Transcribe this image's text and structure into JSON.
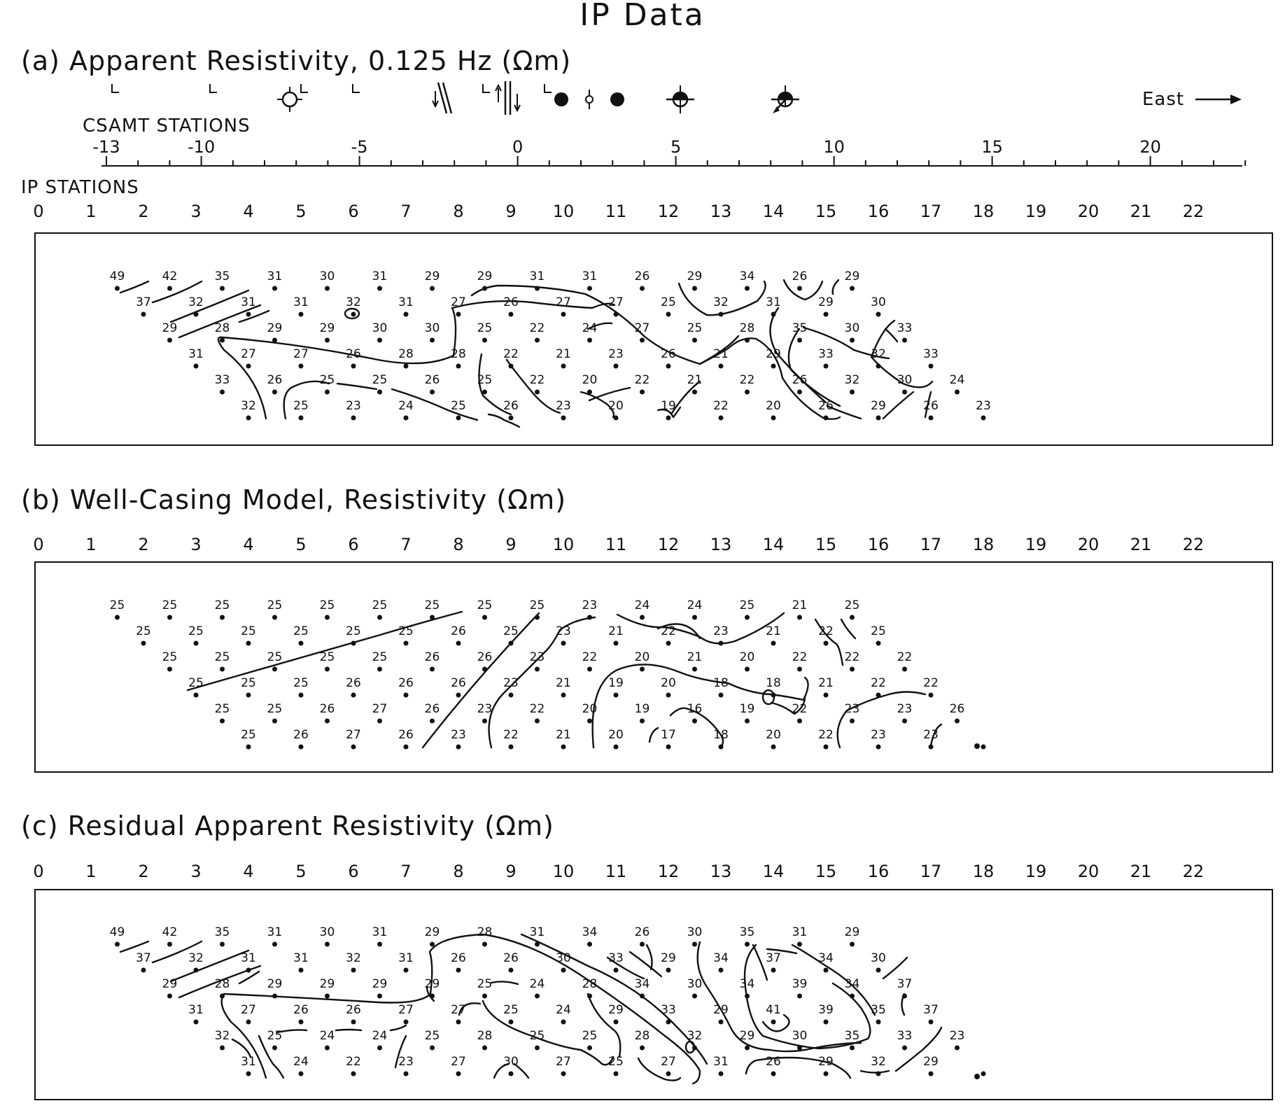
{
  "title": "IP Data",
  "direction_label": "East",
  "csamt_axis": {
    "label": "CSAMT STATIONS",
    "ticks": [
      "-13",
      "-10",
      "-5",
      "0",
      "5",
      "10",
      "15",
      "20"
    ],
    "markers": [
      "well-L",
      "well-L",
      "well-open-circle",
      "well-L",
      "well-L",
      "fault-symbol",
      "well-L",
      "fault-symbol",
      "well-L",
      "well-solid",
      "well-small-open",
      "well-solid",
      "well-crossed-circle",
      "well-crossed-circle-arrow"
    ]
  },
  "ip_axis": {
    "label": "IP STATIONS",
    "ticks": [
      "0",
      "1",
      "2",
      "3",
      "4",
      "5",
      "6",
      "7",
      "8",
      "9",
      "10",
      "11",
      "12",
      "13",
      "14",
      "15",
      "16",
      "17",
      "18",
      "19",
      "20",
      "21",
      "22"
    ]
  },
  "panels": [
    {
      "title": "(a) Apparent Resistivity, 0.125 Hz (Ωm)",
      "rows": [
        {
          "start": 1.5,
          "values": [
            "49",
            "42",
            "35",
            "31",
            "30",
            "31",
            "29",
            "29",
            "31",
            "31",
            "26",
            "29",
            "34",
            "26",
            "29"
          ]
        },
        {
          "start": 2,
          "values": [
            "37",
            "32",
            "31",
            "31",
            "32",
            "31",
            "27",
            "26",
            "27",
            "27",
            "25",
            "32",
            "31",
            "29",
            "30"
          ]
        },
        {
          "start": 2.5,
          "values": [
            "29",
            "28",
            "29",
            "29",
            "30",
            "30",
            "25",
            "22",
            "24",
            "27",
            "25",
            "28",
            "35",
            "30",
            "33"
          ]
        },
        {
          "start": 3,
          "values": [
            "31",
            "27",
            "27",
            "26",
            "28",
            "28",
            "22",
            "21",
            "23",
            "26",
            "21",
            "29",
            "33",
            "32",
            "33"
          ]
        },
        {
          "start": 3.5,
          "values": [
            "33",
            "26",
            "25",
            "25",
            "26",
            "25",
            "22",
            "20",
            "22",
            "21",
            "22",
            "26",
            "32",
            "30",
            "24"
          ]
        },
        {
          "start": 4,
          "values": [
            "32",
            "25",
            "23",
            "24",
            "25",
            "26",
            "23",
            "20",
            "19",
            "22",
            "20",
            "26",
            "29",
            "26",
            "23"
          ]
        }
      ]
    },
    {
      "title": "(b) Well-Casing Model, Resistivity (Ωm)",
      "rows": [
        {
          "start": 1.5,
          "values": [
            "25",
            "25",
            "25",
            "25",
            "25",
            "25",
            "25",
            "25",
            "25",
            "23",
            "24",
            "24",
            "25",
            "21",
            "25"
          ]
        },
        {
          "start": 2,
          "values": [
            "25",
            "25",
            "25",
            "25",
            "25",
            "25",
            "26",
            "25",
            "23",
            "21",
            "22",
            "23",
            "21",
            "22",
            "25"
          ]
        },
        {
          "start": 2.5,
          "values": [
            "25",
            "25",
            "25",
            "25",
            "25",
            "26",
            "26",
            "23",
            "22",
            "20",
            "21",
            "20",
            "22",
            "22",
            "22"
          ]
        },
        {
          "start": 3,
          "values": [
            "25",
            "25",
            "25",
            "26",
            "26",
            "26",
            "23",
            "21",
            "19",
            "20",
            "18",
            "18",
            "21",
            "22",
            "22"
          ]
        },
        {
          "start": 3.5,
          "values": [
            "25",
            "25",
            "26",
            "27",
            "26",
            "23",
            "22",
            "20",
            "19",
            "16",
            "19",
            "22",
            "23",
            "23",
            "26"
          ]
        },
        {
          "start": 4,
          "values": [
            "25",
            "26",
            "27",
            "26",
            "23",
            "22",
            "21",
            "20",
            "17",
            "18",
            "20",
            "22",
            "23",
            "23",
            ""
          ]
        }
      ]
    },
    {
      "title": "(c) Residual Apparent Resistivity (Ωm)",
      "rows": [
        {
          "start": 1.5,
          "values": [
            "49",
            "42",
            "35",
            "31",
            "30",
            "31",
            "29",
            "28",
            "31",
            "34",
            "26",
            "30",
            "35",
            "31",
            "29"
          ]
        },
        {
          "start": 2,
          "values": [
            "37",
            "32",
            "31",
            "31",
            "32",
            "31",
            "26",
            "26",
            "30",
            "33",
            "29",
            "34",
            "37",
            "34",
            "30"
          ]
        },
        {
          "start": 2.5,
          "values": [
            "29",
            "28",
            "29",
            "29",
            "29",
            "29",
            "25",
            "24",
            "28",
            "34",
            "30",
            "34",
            "39",
            "34",
            "37"
          ]
        },
        {
          "start": 3,
          "values": [
            "31",
            "27",
            "26",
            "26",
            "27",
            "27",
            "25",
            "24",
            "29",
            "33",
            "29",
            "41",
            "39",
            "35",
            "37"
          ]
        },
        {
          "start": 3.5,
          "values": [
            "32",
            "25",
            "24",
            "24",
            "25",
            "28",
            "25",
            "25",
            "28",
            "32",
            "29",
            "30",
            "35",
            "33",
            "23"
          ]
        },
        {
          "start": 4,
          "values": [
            "31",
            "24",
            "22",
            "23",
            "27",
            "30",
            "27",
            "25",
            "27",
            "31",
            "26",
            "29",
            "32",
            "29",
            ""
          ]
        }
      ]
    }
  ]
}
